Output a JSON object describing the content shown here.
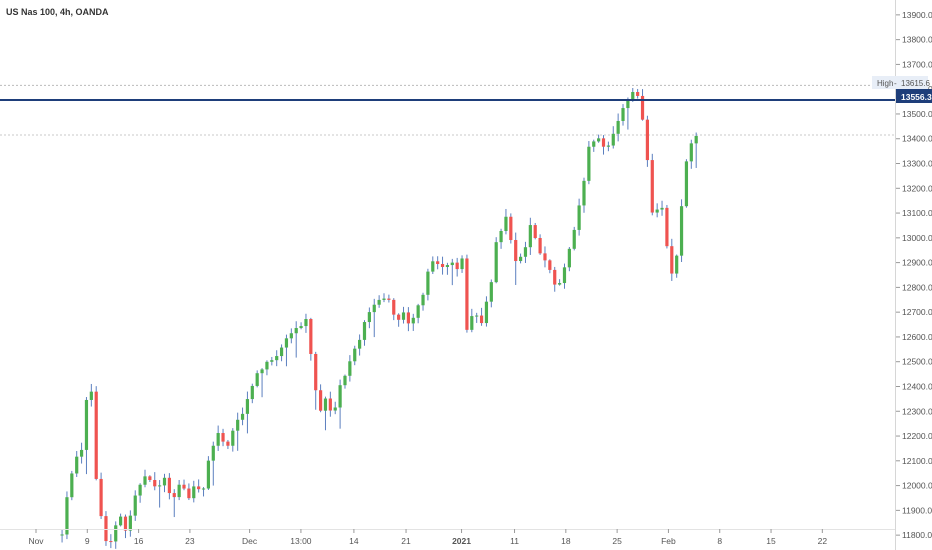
{
  "header": {
    "title": "US Nas 100, 4h, OANDA"
  },
  "colors": {
    "up": "#4caf50",
    "down": "#ef5350",
    "wick": "#5b7fbf",
    "level_line": "#1e3e7a",
    "axis_text": "#555555",
    "high_line": "#bbbbbb"
  },
  "chart_data": {
    "type": "candlestick",
    "title": "US Nas 100, 4h, OANDA",
    "ylim": [
      11740,
      13960
    ],
    "xlim": [
      0,
      100
    ],
    "y_ticks": [
      11800,
      11900,
      12000,
      12100,
      12200,
      12300,
      12400,
      12500,
      12600,
      12700,
      12800,
      12900,
      13000,
      13100,
      13200,
      13300,
      13400,
      13500,
      13600,
      13700,
      13800,
      13900
    ],
    "y_tick_labels": [
      "11800.0",
      "11900.0",
      "12000.0",
      "12100.0",
      "12200.0",
      "12300.0",
      "12400.0",
      "12500.0",
      "12600.0",
      "12700.0",
      "12800.0",
      "12900.0",
      "13000.0",
      "13100.0",
      "13200.0",
      "13300.0",
      "13400.0",
      "13500.0",
      "13600.0",
      "13700.0",
      "13800.0",
      "13900.0"
    ],
    "x_ticks": [
      {
        "x": 0,
        "label": "Nov"
      },
      {
        "x": 6.1,
        "label": "9"
      },
      {
        "x": 12.2,
        "label": "16"
      },
      {
        "x": 18.3,
        "label": "23"
      },
      {
        "x": 25.4,
        "label": "Dec"
      },
      {
        "x": 31.5,
        "label": "13:00"
      },
      {
        "x": 37.8,
        "label": "14"
      },
      {
        "x": 44.0,
        "label": "21"
      },
      {
        "x": 50.6,
        "label": "2021"
      },
      {
        "x": 56.9,
        "label": "11"
      },
      {
        "x": 63.0,
        "label": "18"
      },
      {
        "x": 69.1,
        "label": "25"
      },
      {
        "x": 75.2,
        "label": "Feb"
      },
      {
        "x": 81.3,
        "label": "8"
      },
      {
        "x": 87.4,
        "label": "15"
      },
      {
        "x": 93.5,
        "label": "22"
      }
    ],
    "high": {
      "value": 13615.6,
      "label": "High",
      "value_label": "13615.6"
    },
    "level_line": {
      "value": 13556.3,
      "label": "13556.3"
    },
    "last_price_line": {
      "value": 13415
    },
    "keypoints": [
      [
        0,
        11740
      ],
      [
        3.1,
        11800
      ],
      [
        3.5,
        11900
      ],
      [
        4.1,
        12050
      ],
      [
        4.7,
        12100
      ],
      [
        5.4,
        12150
      ],
      [
        6.1,
        12380
      ],
      [
        6.5,
        12420
      ],
      [
        7.1,
        12050
      ],
      [
        7.6,
        11900
      ],
      [
        8.2,
        11800
      ],
      [
        8.8,
        11760
      ],
      [
        9.3,
        11800
      ],
      [
        9.8,
        11880
      ],
      [
        10.6,
        11830
      ],
      [
        11.4,
        11900
      ],
      [
        12.2,
        12000
      ],
      [
        13.2,
        12060
      ],
      [
        14.2,
        11990
      ],
      [
        15.5,
        12030
      ],
      [
        16.1,
        11920
      ],
      [
        17.0,
        12010
      ],
      [
        18.3,
        11940
      ],
      [
        19.0,
        12010
      ],
      [
        19.7,
        11950
      ],
      [
        20.7,
        12130
      ],
      [
        21.6,
        12200
      ],
      [
        22.7,
        12160
      ],
      [
        23.8,
        12250
      ],
      [
        24.8,
        12300
      ],
      [
        25.8,
        12420
      ],
      [
        27.0,
        12480
      ],
      [
        28.2,
        12500
      ],
      [
        29.2,
        12560
      ],
      [
        30.3,
        12600
      ],
      [
        31.3,
        12640
      ],
      [
        32.2,
        12670
      ],
      [
        33.0,
        12430
      ],
      [
        33.8,
        12310
      ],
      [
        34.5,
        12350
      ],
      [
        35.2,
        12300
      ],
      [
        35.8,
        12330
      ],
      [
        36.3,
        12420
      ],
      [
        37.0,
        12480
      ],
      [
        37.8,
        12560
      ],
      [
        38.5,
        12600
      ],
      [
        39.2,
        12660
      ],
      [
        39.9,
        12700
      ],
      [
        40.6,
        12760
      ],
      [
        41.2,
        12770
      ],
      [
        42.2,
        12740
      ],
      [
        42.9,
        12640
      ],
      [
        43.6,
        12700
      ],
      [
        44.3,
        12640
      ],
      [
        45.0,
        12680
      ],
      [
        45.8,
        12760
      ],
      [
        46.6,
        12850
      ],
      [
        47.3,
        12910
      ],
      [
        48.0,
        12880
      ],
      [
        48.7,
        12870
      ],
      [
        49.4,
        12890
      ],
      [
        50.1,
        12880
      ],
      [
        50.6,
        12960
      ],
      [
        51.1,
        12640
      ],
      [
        51.6,
        12650
      ],
      [
        52.2,
        12720
      ],
      [
        52.8,
        12640
      ],
      [
        53.4,
        12720
      ],
      [
        54.0,
        12760
      ],
      [
        54.6,
        12960
      ],
      [
        55.2,
        13030
      ],
      [
        55.9,
        13100
      ],
      [
        56.5,
        12980
      ],
      [
        57.2,
        12900
      ],
      [
        58.0,
        12940
      ],
      [
        58.8,
        13050
      ],
      [
        59.6,
        12960
      ],
      [
        60.4,
        12920
      ],
      [
        61.0,
        12870
      ],
      [
        61.6,
        12800
      ],
      [
        62.3,
        12820
      ],
      [
        63.0,
        12890
      ],
      [
        63.7,
        12980
      ],
      [
        64.3,
        13060
      ],
      [
        65.0,
        13200
      ],
      [
        65.7,
        13350
      ],
      [
        66.4,
        13400
      ],
      [
        67.1,
        13380
      ],
      [
        67.8,
        13340
      ],
      [
        68.4,
        13410
      ],
      [
        69.1,
        13470
      ],
      [
        69.8,
        13520
      ],
      [
        70.5,
        13570
      ],
      [
        71.2,
        13600
      ],
      [
        71.8,
        13560
      ],
      [
        72.5,
        13400
      ],
      [
        73.0,
        13150
      ],
      [
        73.6,
        13030
      ],
      [
        74.2,
        13200
      ],
      [
        74.8,
        13000
      ],
      [
        75.5,
        12860
      ],
      [
        76.1,
        12900
      ],
      [
        76.7,
        13100
      ],
      [
        77.3,
        13320
      ],
      [
        78.0,
        13380
      ],
      [
        78.6,
        13415
      ]
    ]
  }
}
